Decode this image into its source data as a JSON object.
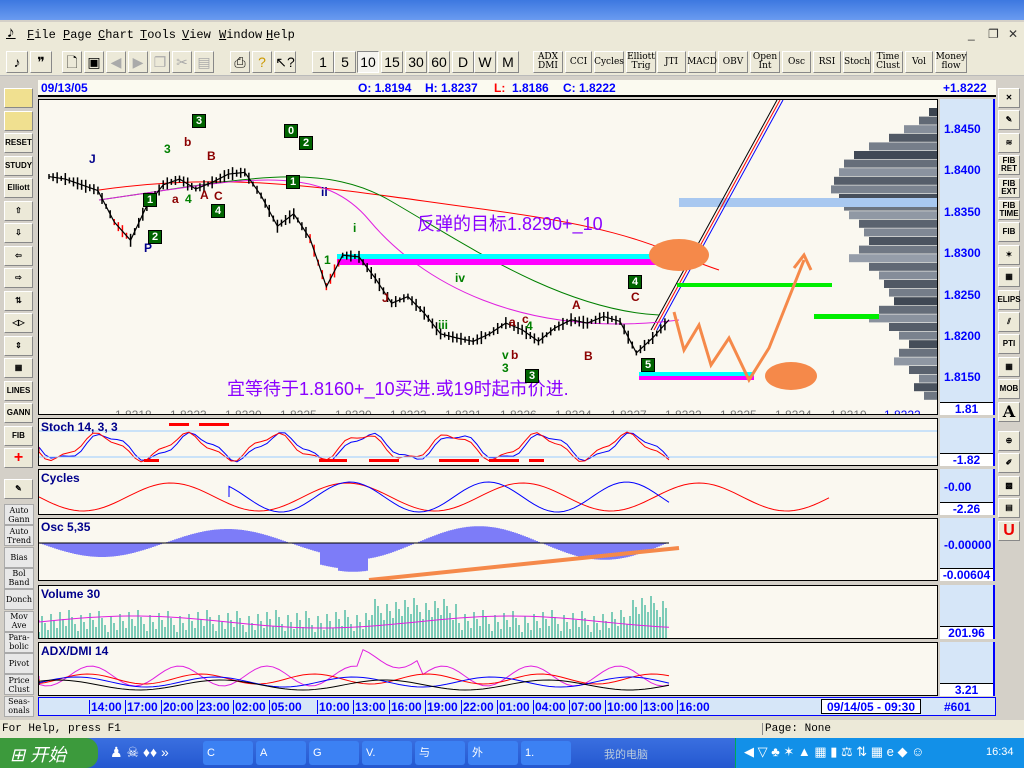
{
  "menu": {
    "items": [
      "File",
      "Page",
      "Chart",
      "Tools",
      "View",
      "Window",
      "Help"
    ]
  },
  "toolbar": {
    "periods": [
      "1",
      "5",
      "10",
      "15",
      "30",
      "60",
      "D",
      "W",
      "M"
    ],
    "selected_period": "10",
    "indicators": [
      "ADX DMI",
      "CCI",
      "Cycles",
      "Elliott Trig",
      "JTI",
      "MACD",
      "OBV",
      "Open Int",
      "Osc",
      "RSI",
      "Stoch",
      "Time Clust",
      "Vol",
      "Money flow"
    ]
  },
  "header": {
    "date": "09/13/05",
    "open": "O: 1.8194",
    "high": "H: 1.8237",
    "low_label": "L:",
    "low": "1.8186",
    "close": "C: 1.8222",
    "last": "+1.8222"
  },
  "price_axis": {
    "ticks": [
      "1.8450",
      "1.8400",
      "1.8350",
      "1.8300",
      "1.8250",
      "1.8200",
      "1.8150"
    ],
    "bottom": "1.81"
  },
  "price_path": [
    1.8395,
    1.8392,
    1.8385,
    1.8378,
    1.834,
    1.8318,
    1.836,
    1.8385,
    1.8392,
    1.838,
    1.8388,
    1.8398,
    1.84,
    1.8372,
    1.8335,
    1.835,
    1.832,
    1.8262,
    1.83,
    1.8298,
    1.8272,
    1.8242,
    1.825,
    1.823,
    1.8205,
    1.82,
    1.8196,
    1.8205,
    1.8218,
    1.821,
    1.8196,
    1.8212,
    1.8222,
    1.8218,
    1.8226,
    1.822,
    1.8182,
    1.82,
    1.8222
  ],
  "volume_profile": [
    10,
    20,
    35,
    50,
    70,
    85,
    95,
    100,
    105,
    108,
    100,
    95,
    90,
    80,
    75,
    70,
    80,
    90,
    70,
    60,
    55,
    50,
    45,
    60,
    70,
    50,
    40,
    30,
    40,
    45,
    30,
    20,
    25,
    15
  ],
  "bottom_prices": [
    "1.8218",
    "1.8223",
    "1.8220",
    "1.8225",
    "1.8220",
    "1.8223",
    "1.8221",
    "1.8226",
    "1.8224",
    "1.8227",
    "1.8222",
    "1.8225",
    "1.8224",
    "1.8219",
    "1.8222"
  ],
  "elliott_labels": [
    "J",
    "3",
    "b",
    "B",
    "A",
    "C",
    "a",
    "4",
    "P",
    "ii",
    "i",
    "J",
    "iii",
    "iv",
    "v",
    "b",
    "3",
    "a",
    "c",
    "4",
    "A",
    "B",
    "C",
    "1"
  ],
  "elliott_boxes": [
    "3",
    "1",
    "2",
    "4",
    "1",
    "2",
    "0",
    "4",
    "5",
    "3"
  ],
  "annotations": {
    "target": "反弹的目标1.8290+_10",
    "advice": "宜等待于1.8160+_10买进.或19时起市价进."
  },
  "panes": [
    {
      "title": "Stoch 14, 3, 3",
      "axis": [
        "",
        "-1.82"
      ]
    },
    {
      "title": "Cycles",
      "axis": [
        "-0.00",
        "-2.26"
      ]
    },
    {
      "title": "Osc 5,35",
      "axis": [
        "-0.00000",
        "-0.00604"
      ]
    },
    {
      "title": "Volume 30",
      "axis": [
        "",
        "201.96"
      ]
    },
    {
      "title": "ADX/DMI 14",
      "axis": [
        "",
        "3.21"
      ]
    }
  ],
  "left_tools": [
    "",
    "",
    "RESET",
    "STUDY",
    "Elliott",
    "⇧",
    "⇩",
    "⇦",
    "⇨",
    "⇅",
    "◁▷",
    "⇕",
    "▦",
    "LINES",
    "GANN",
    "FIB",
    "+",
    "✎"
  ],
  "study_tools": [
    "Auto Gann",
    "Auto Trend",
    "Bias",
    "Bol Band",
    "Donch",
    "Mov Ave",
    "Para-bolic",
    "Pivot",
    "Price Clust",
    "Seas-onals"
  ],
  "right_tools": [
    "✕",
    "✎",
    "≋",
    "FIB RET",
    "FIB EXT",
    "FIB TIME",
    "FIB",
    "✶",
    "▦",
    "ELIPS",
    "⫽",
    "PTI",
    "▦",
    "MOB",
    "A",
    "⊕",
    "✐",
    "▩",
    "▤",
    "U"
  ],
  "time_axis": {
    "labels": [
      "14:00",
      "17:00",
      "20:00",
      "23:00",
      "02:00",
      "05:00",
      "10:00",
      "13:00",
      "16:00",
      "19:00",
      "22:00",
      "01:00",
      "04:00",
      "07:00",
      "10:00",
      "13:00",
      "16:00"
    ],
    "cursor_time": "09/14/05 - 09:30",
    "bar_number": "#601"
  },
  "status": {
    "help": "For Help, press F1",
    "page": "Page: None"
  },
  "taskbar": {
    "start": "开始",
    "tasks": [
      "C",
      "A",
      "G",
      "V.",
      "与",
      "外",
      "1."
    ],
    "desktop": "我的电脑",
    "clock": "16:34"
  },
  "colors": {
    "axis_blue": "#0000ff",
    "note_purple": "#8a00ff",
    "target_orange": "#f5894a",
    "cyan": "#00ffff",
    "magenta": "#ff00ff",
    "green": "#00ee00"
  }
}
